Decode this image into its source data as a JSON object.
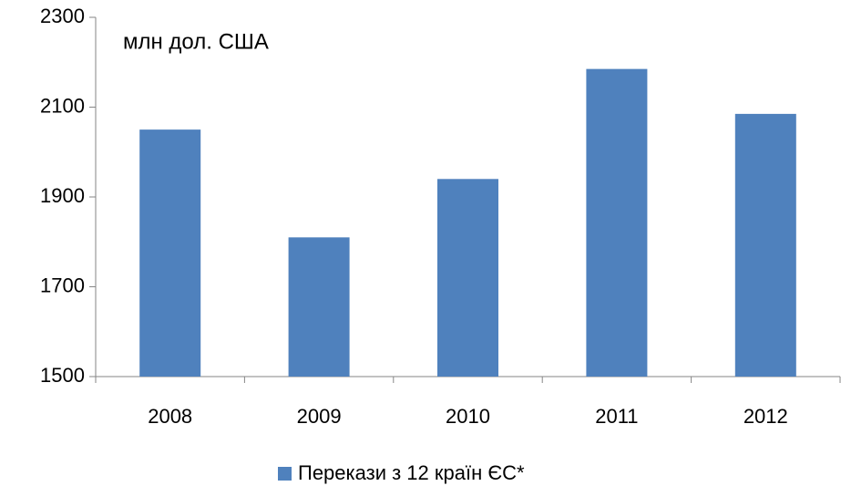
{
  "chart_data": {
    "type": "bar",
    "subtitle": "млн дол. США",
    "categories": [
      "2008",
      "2009",
      "2010",
      "2011",
      "2012"
    ],
    "series": [
      {
        "name": "Перекази з 12 країн ЄС*",
        "color": "#4f81bd",
        "values": [
          2050,
          1810,
          1940,
          2185,
          2085
        ]
      }
    ],
    "ylim": [
      1500,
      2300
    ],
    "yticks": [
      1500,
      1700,
      1900,
      2100,
      2300
    ],
    "grid": false,
    "legend": "bottom"
  }
}
